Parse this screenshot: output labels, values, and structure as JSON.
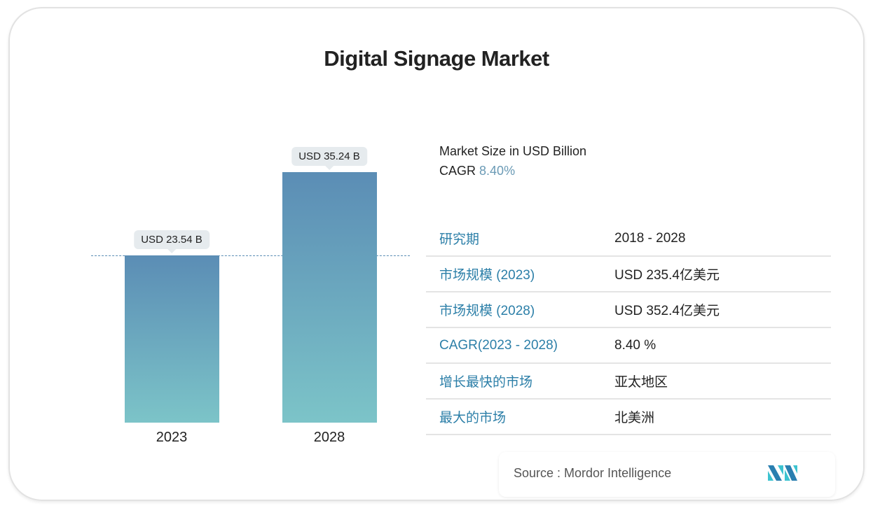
{
  "title": "Digital Signage Market",
  "chart_data": {
    "type": "bar",
    "categories": [
      "2023",
      "2028"
    ],
    "values": [
      23.54,
      35.24
    ],
    "data_labels": [
      "USD 23.54 B",
      "USD 35.24 B"
    ],
    "ylim": [
      0,
      35.24
    ],
    "reference_line": 23.54,
    "colors": {
      "bar_top": "#5b8db5",
      "bar_bottom": "#7cc4c8"
    }
  },
  "info": {
    "market_size_label": "Market Size in USD Billion",
    "cagr_label": "CAGR",
    "cagr_value": "8.40%"
  },
  "table": [
    {
      "key": "研究期",
      "value": "2018 - 2028"
    },
    {
      "key": "市场规模 (2023)",
      "value": "USD 235.4亿美元"
    },
    {
      "key": "市场规模 (2028)",
      "value": "USD 352.4亿美元"
    },
    {
      "key": "CAGR(2023 - 2028)",
      "value": "8.40 %"
    },
    {
      "key": "增长最快的市场",
      "value": "亚太地区"
    },
    {
      "key": "最大的市场",
      "value": "北美洲"
    }
  ],
  "source": "Source :  Mordor Intelligence",
  "logo_text": "MI"
}
